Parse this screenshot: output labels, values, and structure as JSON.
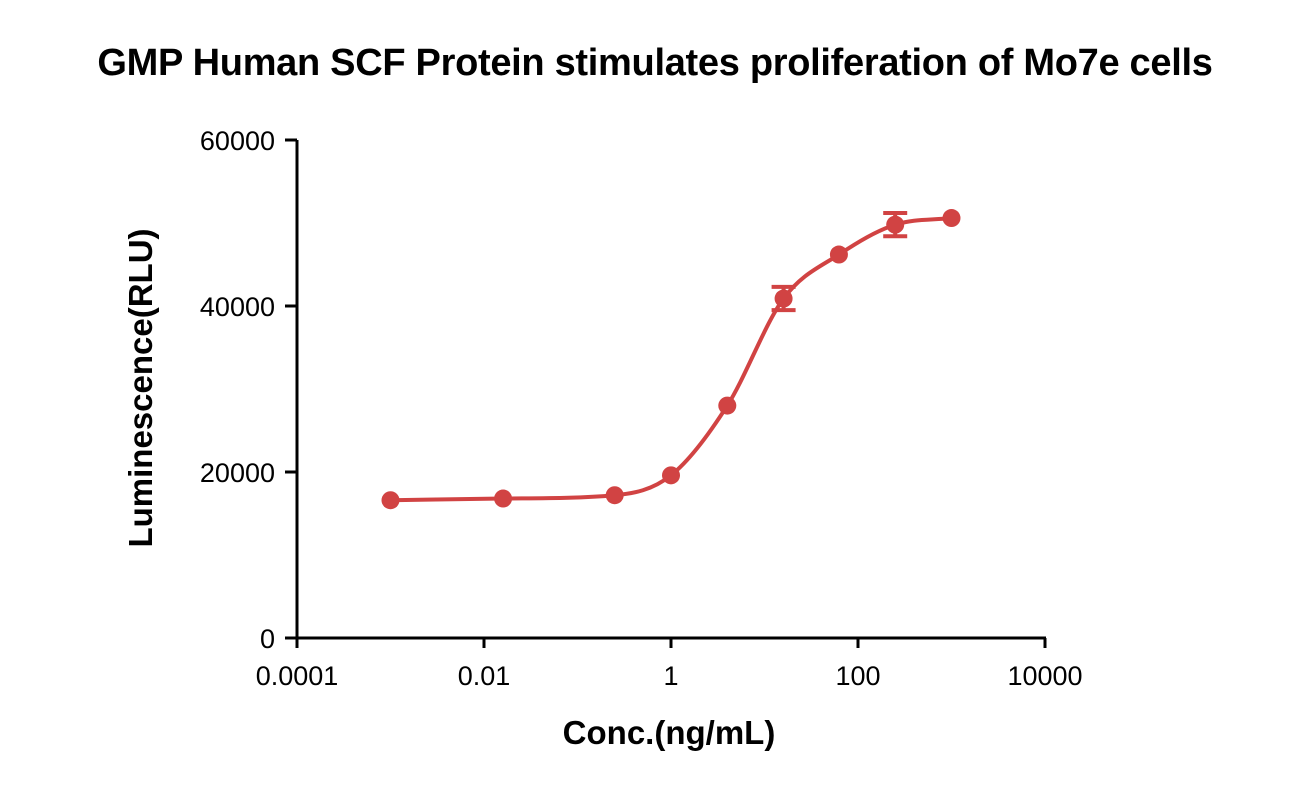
{
  "chart_data": {
    "type": "line",
    "title": "GMP Human SCF Protein stimulates proliferation of Mo7e cells",
    "xlabel": "Conc.(ng/mL)",
    "ylabel": "Luminescence(RLU)",
    "xscale": "log",
    "xlim": [
      0.0001,
      10000
    ],
    "ylim": [
      0,
      60000
    ],
    "x_ticks": [
      0.0001,
      0.01,
      1,
      100,
      10000
    ],
    "x_tick_labels": [
      "0.0001",
      "0.01",
      "1",
      "100",
      "10000"
    ],
    "y_ticks": [
      0,
      20000,
      40000,
      60000
    ],
    "y_tick_labels": [
      "0",
      "20000",
      "40000",
      "60000"
    ],
    "grid": false,
    "legend": "none",
    "color": "#d14343",
    "series": [
      {
        "x": [
          0.001,
          0.016,
          0.25,
          1,
          4,
          16,
          62.5,
          250,
          1000
        ],
        "y": [
          16600,
          16800,
          17200,
          19600,
          28000,
          40900,
          46200,
          49800,
          50600
        ],
        "error": [
          0,
          0,
          0,
          0,
          0,
          1400,
          0,
          1400,
          0
        ]
      }
    ]
  }
}
